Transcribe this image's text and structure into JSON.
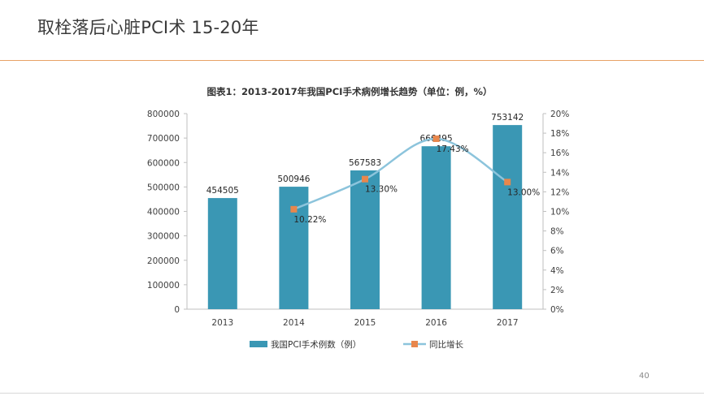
{
  "slide": {
    "title": "取栓落后心脏PCI术 15-20年",
    "page_number": "40"
  },
  "colors": {
    "bar": "#3a97b4",
    "line": "#8cc4dc",
    "marker": "#e8874d",
    "rule": "#e8a265"
  },
  "chart_data": {
    "type": "bar",
    "title": "图表1：2013-2017年我国PCI手术病例增长趋势（单位：例，%）",
    "categories": [
      "2013",
      "2014",
      "2015",
      "2016",
      "2017"
    ],
    "series": [
      {
        "name": "我国PCI手术例数（例）",
        "type": "bar",
        "axis": "left",
        "values": [
          454505,
          500946,
          567583,
          666495,
          753142
        ],
        "labels": [
          "454505",
          "500946",
          "567583",
          "666495",
          "753142"
        ]
      },
      {
        "name": "同比增长",
        "type": "line",
        "axis": "right",
        "x": [
          "2014",
          "2015",
          "2016",
          "2017"
        ],
        "values": [
          10.22,
          13.3,
          17.43,
          13.0
        ],
        "labels": [
          "10.22%",
          "13.30%",
          "17.43%",
          "13.00%"
        ]
      }
    ],
    "y_left": {
      "min": 0,
      "max": 800000,
      "ticks": [
        "0",
        "100000",
        "200000",
        "300000",
        "400000",
        "500000",
        "600000",
        "700000",
        "800000"
      ]
    },
    "y_right": {
      "min": 0,
      "max": 20,
      "ticks": [
        "0%",
        "2%",
        "4%",
        "6%",
        "8%",
        "10%",
        "12%",
        "14%",
        "16%",
        "18%",
        "20%"
      ]
    },
    "legend": [
      "我国PCI手术例数（例）",
      "同比增长"
    ],
    "legend_position": "bottom"
  }
}
